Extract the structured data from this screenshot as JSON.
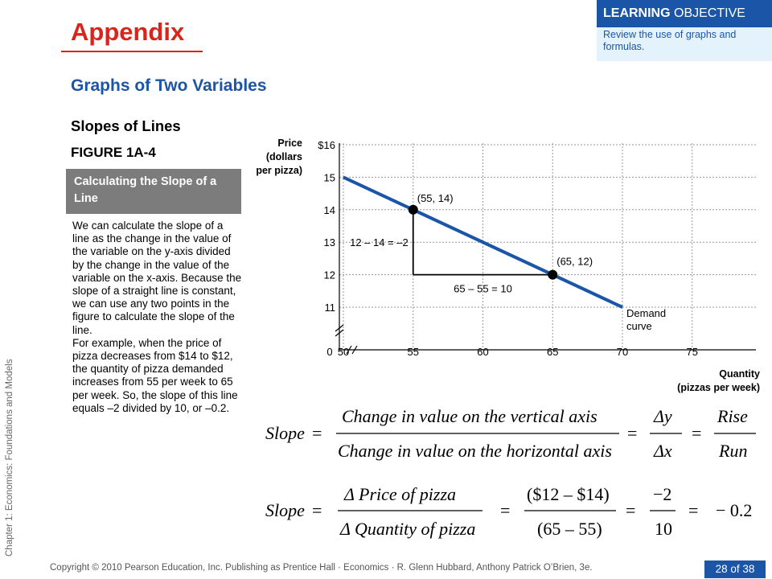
{
  "header": {
    "title": "Appendix",
    "learning_objective": {
      "label_bold": "LEARNING",
      "label_rest": " OBJECTIVE",
      "text": "Review the use of graphs and formulas."
    }
  },
  "section": {
    "heading": "Graphs of Two Variables",
    "subheading": "Slopes of Lines"
  },
  "figure": {
    "number": "FIGURE 1A-4",
    "caption_title": "Calculating the Slope of a Line",
    "description_1": "We can calculate the slope of a line as the change in the value of the variable on the y-axis divided by the change in the value of the variable on the x-axis. Because the slope of a straight line is constant, we can use any two points in the figure to calculate the slope of the line.",
    "description_2": "For example, when the price of pizza decreases from $14 to $12, the quantity of pizza demanded increases from 55 per week to 65 per week. So, the slope of this line equals –2 divided by 10, or –0.2."
  },
  "chart_data": {
    "type": "line",
    "ylabel": [
      "Price",
      "(dollars",
      "per pizza)"
    ],
    "xlabel": [
      "Quantity",
      "(pizzas per week)"
    ],
    "y_ticks": [
      "$16",
      "15",
      "14",
      "13",
      "12",
      "11"
    ],
    "x_ticks": [
      "0",
      "50",
      "55",
      "60",
      "65",
      "70",
      "75"
    ],
    "xlim": [
      50,
      75
    ],
    "ylim": [
      11,
      16
    ],
    "axis_breaks": true,
    "grid": "dotted",
    "series": [
      {
        "name": "Demand curve",
        "x": [
          50,
          70
        ],
        "y": [
          15,
          11
        ],
        "color": "#1a55a8"
      }
    ],
    "points": [
      {
        "label": "(55, 14)",
        "x": 55,
        "y": 14
      },
      {
        "label": "(65, 12)",
        "x": 65,
        "y": 12
      }
    ],
    "rise_label": "12 – 14 = –2",
    "run_label": "65 – 55 = 10",
    "curve_label": [
      "Demand",
      "curve"
    ]
  },
  "formulas": {
    "slope_word": "Slope",
    "eq": "=",
    "f1_num": "Change in value on the vertical axis",
    "f1_den": "Change in value on the horizontal axis",
    "f1_dnum": "Δy",
    "f1_dden": "Δx",
    "f1_rise": "Rise",
    "f1_run": "Run",
    "f2_num": "Δ Price of  pizza",
    "f2_den": "Δ Quantity of  pizza",
    "f2_num2": "($12 – $14)",
    "f2_den2": "(65 – 55)",
    "f2_num3": "−2",
    "f2_den3": "10",
    "f2_result": "− 0.2"
  },
  "footer": {
    "copyright": "Copyright © 2010 Pearson Education, Inc. Publishing as Prentice Hall · Economics · R. Glenn Hubbard, Anthony Patrick O’Brien, 3e.",
    "page": "28 of 38",
    "side_label": "Chapter 1: Economics:  Foundations and Models"
  }
}
